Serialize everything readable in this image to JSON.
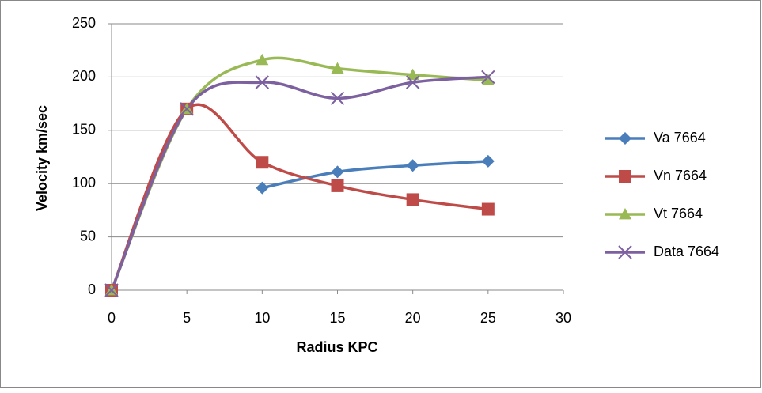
{
  "chart_data": {
    "type": "line",
    "smooth": true,
    "x_label": "Radius KPC",
    "y_label": "Velocity km/sec",
    "x": [
      0,
      5,
      10,
      15,
      20,
      25
    ],
    "series": [
      {
        "name": "Va 7664",
        "color": "#4a7ebb",
        "marker": "diamond",
        "values": [
          null,
          null,
          96,
          111,
          117,
          121
        ]
      },
      {
        "name": "Vn 7664",
        "color": "#be4b48",
        "marker": "square",
        "values": [
          0,
          170,
          120,
          98,
          85,
          76
        ]
      },
      {
        "name": "Vt 7664",
        "color": "#98b954",
        "marker": "triangle",
        "values": [
          0,
          170,
          216,
          208,
          202,
          197
        ]
      },
      {
        "name": "Data 7664",
        "color": "#7d60a0",
        "marker": "x",
        "values": [
          0,
          170,
          195,
          180,
          195,
          200
        ]
      }
    ],
    "xlim": [
      0,
      30
    ],
    "xticks": [
      0,
      5,
      10,
      15,
      20,
      25,
      30
    ],
    "ylim": [
      0,
      250
    ],
    "yticks": [
      0,
      50,
      100,
      150,
      200,
      250
    ],
    "grid": true,
    "legend": "right"
  }
}
